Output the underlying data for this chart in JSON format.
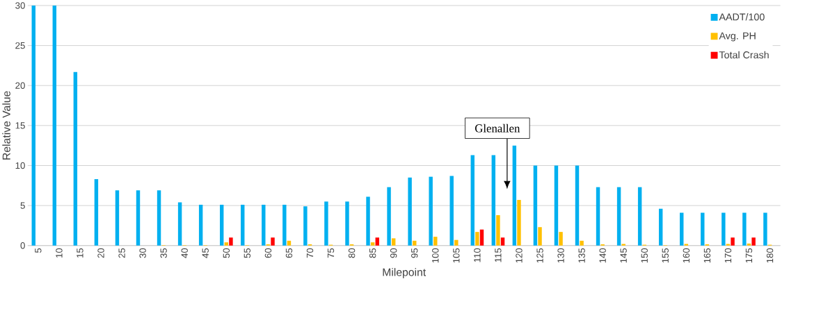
{
  "chart_data": {
    "type": "bar",
    "xlabel": "Milepoint",
    "ylabel": "Relative Value",
    "categories": [
      "5",
      "10",
      "15",
      "20",
      "25",
      "30",
      "35",
      "40",
      "45",
      "50",
      "55",
      "60",
      "65",
      "70",
      "75",
      "80",
      "85",
      "90",
      "95",
      "100",
      "105",
      "110",
      "115",
      "120",
      "125",
      "130",
      "135",
      "140",
      "145",
      "150",
      "155",
      "160",
      "165",
      "170",
      "175",
      "180"
    ],
    "series": [
      {
        "name": "AADT/100",
        "color": "#00b0f0",
        "values": [
          30,
          30,
          21.7,
          8.3,
          6.9,
          6.9,
          6.9,
          5.4,
          5.1,
          5.1,
          5.1,
          5.1,
          5.1,
          4.9,
          5.5,
          5.5,
          6.1,
          7.3,
          8.5,
          8.6,
          8.7,
          11.3,
          11.3,
          12.5,
          10,
          10,
          10,
          7.3,
          7.3,
          7.3,
          4.6,
          4.1,
          4.1,
          4.1,
          4.1,
          4.1
        ]
      },
      {
        "name": "Avg. PH",
        "color": "#ffc000",
        "values": [
          0,
          0,
          0,
          0,
          0,
          0,
          0.05,
          0.05,
          0.05,
          0.4,
          0.05,
          0.15,
          0.6,
          0.15,
          0.1,
          0.15,
          0.4,
          0.9,
          0.6,
          1.1,
          0.7,
          1.7,
          3.8,
          5.7,
          2.3,
          1.7,
          0.6,
          0.15,
          0.2,
          0.1,
          0.05,
          0.2,
          0.15,
          0.2,
          0.25,
          0.1
        ]
      },
      {
        "name": "Total Crash",
        "color": "#ff0000",
        "values": [
          0,
          0,
          0,
          0,
          0,
          0,
          0,
          0,
          0,
          1,
          0,
          1,
          0,
          0,
          0,
          0,
          1,
          0,
          0,
          0,
          0,
          2,
          1,
          0,
          0,
          0,
          0,
          0,
          0,
          0,
          0,
          0,
          0,
          1,
          1,
          0
        ]
      }
    ],
    "ylim": [
      0,
      30
    ],
    "yticks": [
      0,
      5,
      10,
      15,
      20,
      25,
      30
    ],
    "grid": "y",
    "legend": "top right",
    "annotations": [
      "Glenallen"
    ]
  }
}
